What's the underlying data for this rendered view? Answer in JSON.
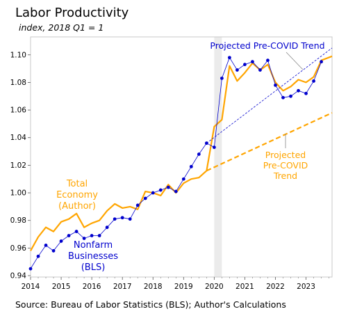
{
  "title": "Labor Productivity",
  "subtitle": "index, 2018 Q1 = 1",
  "source": "Source: Bureau of Labor Statistics (BLS); Author's Calculations",
  "colors": {
    "total": "#ffa500",
    "nonfarm": "#0000cd",
    "projection_total": "#ffa500",
    "projection_nonfarm": "#0000cd",
    "shade": "#ebebeb",
    "axis": "#c8c8c8"
  },
  "annotations": {
    "total_lines": [
      "Total",
      "Economy",
      "(Author)"
    ],
    "nonfarm_lines": [
      "Nonfarm",
      "Businesses",
      "(BLS)"
    ],
    "proj_nonfarm": "Projected Pre-COVID Trend",
    "proj_total_lines": [
      "Projected",
      "Pre-COVID",
      "Trend"
    ]
  },
  "chart_data": {
    "type": "line",
    "xlim": [
      2014.0,
      2023.85
    ],
    "ylim": [
      0.939,
      1.113
    ],
    "x_ticks": [
      2014,
      2015,
      2016,
      2017,
      2018,
      2019,
      2020,
      2021,
      2022,
      2023
    ],
    "x_tick_labels": [
      "2014",
      "2015",
      "2016",
      "2017",
      "2018",
      "2019",
      "2020",
      "2021",
      "2022",
      "2023"
    ],
    "y_ticks": [
      0.94,
      0.96,
      0.98,
      1.0,
      1.02,
      1.04,
      1.06,
      1.08,
      1.1
    ],
    "y_tick_labels": [
      "0.94",
      "0.96",
      "0.98",
      "1.00",
      "1.02",
      "1.04",
      "1.06",
      "1.08",
      "1.10"
    ],
    "shaded_region": [
      2020.0,
      2020.25
    ],
    "grid": false,
    "series": [
      {
        "name": "Total Economy (Author)",
        "style": "solid",
        "x": [
          2014.0,
          2014.25,
          2014.5,
          2014.75,
          2015.0,
          2015.25,
          2015.5,
          2015.75,
          2016.0,
          2016.25,
          2016.5,
          2016.75,
          2017.0,
          2017.25,
          2017.5,
          2017.75,
          2018.0,
          2018.25,
          2018.5,
          2018.75,
          2019.0,
          2019.25,
          2019.5,
          2019.75,
          2020.0,
          2020.25,
          2020.5,
          2020.75,
          2021.0,
          2021.25,
          2021.5,
          2021.75,
          2022.0,
          2022.25,
          2022.5,
          2022.75,
          2023.0,
          2023.25,
          2023.5,
          2023.85
        ],
        "values": [
          0.958,
          0.968,
          0.975,
          0.972,
          0.979,
          0.981,
          0.985,
          0.975,
          0.978,
          0.98,
          0.987,
          0.992,
          0.989,
          0.99,
          0.988,
          1.001,
          1.0,
          0.998,
          1.006,
          1.0,
          1.007,
          1.01,
          1.011,
          1.016,
          1.048,
          1.053,
          1.092,
          1.081,
          1.087,
          1.094,
          1.089,
          1.093,
          1.08,
          1.074,
          1.077,
          1.082,
          1.08,
          1.084,
          1.096,
          1.099
        ]
      },
      {
        "name": "Nonfarm Businesses (BLS)",
        "style": "solid-markers",
        "x": [
          2014.0,
          2014.25,
          2014.5,
          2014.75,
          2015.0,
          2015.25,
          2015.5,
          2015.75,
          2016.0,
          2016.25,
          2016.5,
          2016.75,
          2017.0,
          2017.25,
          2017.5,
          2017.75,
          2018.0,
          2018.25,
          2018.5,
          2018.75,
          2019.0,
          2019.25,
          2019.5,
          2019.75,
          2020.0,
          2020.25,
          2020.5,
          2020.75,
          2021.0,
          2021.25,
          2021.5,
          2021.75,
          2022.0,
          2022.25,
          2022.5,
          2022.75,
          2023.0,
          2023.25,
          2023.5
        ],
        "values": [
          0.945,
          0.954,
          0.962,
          0.958,
          0.965,
          0.969,
          0.972,
          0.967,
          0.969,
          0.969,
          0.975,
          0.981,
          0.982,
          0.981,
          0.991,
          0.996,
          1.0,
          1.002,
          1.004,
          1.001,
          1.01,
          1.019,
          1.028,
          1.036,
          1.033,
          1.083,
          1.098,
          1.089,
          1.093,
          1.095,
          1.089,
          1.096,
          1.078,
          1.069,
          1.07,
          1.074,
          1.072,
          1.081,
          1.095
        ]
      },
      {
        "name": "Projected Pre-COVID Trend (Nonfarm)",
        "style": "dashed-thin",
        "x": [
          2019.75,
          2023.85
        ],
        "values": [
          1.036,
          1.105
        ]
      },
      {
        "name": "Projected Pre-COVID Trend (Total)",
        "style": "dashed-thick",
        "x": [
          2019.75,
          2023.85
        ],
        "values": [
          1.016,
          1.058
        ]
      }
    ]
  }
}
